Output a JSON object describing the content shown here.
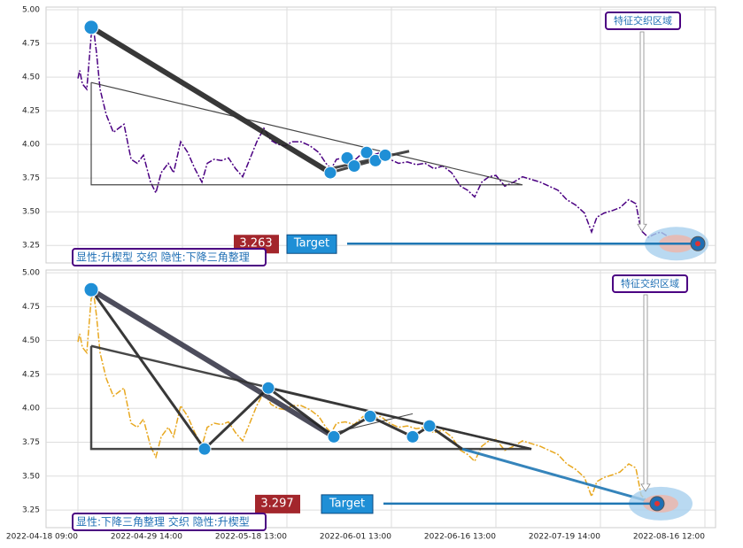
{
  "chart_data": [
    {
      "type": "line",
      "grid": true,
      "xlim": [
        -36,
        720
      ],
      "ylim": [
        3.12,
        5.02
      ],
      "yticks": [
        3.25,
        {
          "value": 3.5,
          "label": "3.50"
        },
        3.75,
        {
          "value": 4,
          "label": "4.00"
        },
        4.25,
        {
          "value": 4.5,
          "label": "4.50"
        },
        4.75,
        {
          "value": 5,
          "label": "5.00"
        }
      ],
      "x": [
        0,
        2,
        5,
        10,
        15,
        18,
        21,
        25,
        32,
        40,
        46,
        52,
        60,
        67,
        74,
        82,
        88,
        94,
        102,
        108,
        116,
        124,
        132,
        140,
        146,
        154,
        162,
        170,
        178,
        186,
        194,
        202,
        210,
        218,
        226,
        234,
        242,
        252,
        262,
        272,
        280,
        286,
        292,
        302,
        312,
        322,
        332,
        342,
        352,
        362,
        372,
        382,
        392,
        402,
        412,
        422,
        432,
        440,
        448,
        456,
        464,
        472,
        482,
        492,
        502,
        512,
        522,
        532,
        542,
        552,
        562,
        572,
        580,
        586,
        594,
        604,
        612,
        622,
        630,
        636,
        644,
        650,
        658,
        668
      ],
      "series": [
        {
          "color": "#4b0082",
          "values": [
            4.49,
            4.55,
            4.45,
            4.41,
            4.81,
            4.84,
            4.68,
            4.41,
            4.22,
            4.09,
            4.12,
            4.15,
            3.89,
            3.86,
            3.92,
            3.72,
            3.64,
            3.79,
            3.86,
            3.79,
            4.02,
            3.94,
            3.82,
            3.72,
            3.86,
            3.89,
            3.88,
            3.9,
            3.82,
            3.76,
            3.89,
            4.02,
            4.12,
            4.03,
            4.0,
            3.99,
            4.02,
            4.02,
            3.99,
            3.94,
            3.86,
            3.82,
            3.89,
            3.9,
            3.88,
            3.94,
            3.92,
            3.94,
            3.89,
            3.86,
            3.87,
            3.85,
            3.86,
            3.82,
            3.84,
            3.79,
            3.69,
            3.66,
            3.61,
            3.72,
            3.76,
            3.77,
            3.69,
            3.72,
            3.76,
            3.74,
            3.72,
            3.69,
            3.66,
            3.59,
            3.55,
            3.49,
            3.35,
            3.46,
            3.49,
            3.51,
            3.53,
            3.59,
            3.56,
            3.36,
            3.31,
            3.33,
            3.35,
            3.31
          ]
        }
      ],
      "patterns": [
        {
          "color": "#222222",
          "width": 6,
          "points": [
            [
              15,
              4.87
            ],
            [
              285,
              3.79
            ]
          ]
        },
        {
          "color": "#333333",
          "width": 1.2,
          "points": [
            [
              15,
              4.46
            ],
            [
              502,
              3.7
            ],
            [
              15,
              3.7
            ],
            [
              15,
              4.46
            ]
          ]
        },
        {
          "color": "#333333",
          "width": 3,
          "points": [
            [
              285,
              3.82
            ],
            [
              374,
              3.95
            ]
          ]
        },
        {
          "color": "#333333",
          "width": 3,
          "points": [
            [
              285,
              3.79
            ],
            [
              345,
              3.9
            ]
          ]
        }
      ],
      "markers": [
        [
          15,
          4.87
        ],
        [
          285,
          3.79
        ],
        [
          304,
          3.9
        ],
        [
          312,
          3.84
        ],
        [
          326,
          3.94
        ],
        [
          336,
          3.88
        ],
        [
          347,
          3.92
        ]
      ],
      "target": {
        "x": 700,
        "value": 3.263,
        "label": "Target"
      },
      "zone_label": "特征交织区域",
      "pattern_label": "显性:升楔型 交织 隐性:下降三角整理"
    },
    {
      "type": "line",
      "grid": true,
      "xlim": [
        -36,
        720
      ],
      "ylim": [
        3.12,
        5.02
      ],
      "yticks": [
        3.25,
        {
          "value": 3.5,
          "label": "3.50"
        },
        3.75,
        {
          "value": 4,
          "label": "4.00"
        },
        4.25,
        {
          "value": 4.5,
          "label": "4.50"
        },
        4.75,
        {
          "value": 5,
          "label": "5.00"
        }
      ],
      "xticks": [
        {
          "value": 0,
          "label": "2022-04-18 09:00"
        },
        {
          "value": 118,
          "label": "2022-04-29 14:00"
        },
        {
          "value": 236,
          "label": "2022-05-18 13:00"
        },
        {
          "value": 354,
          "label": "2022-06-01 13:00"
        },
        {
          "value": 472,
          "label": "2022-06-16 13:00"
        },
        {
          "value": 590,
          "label": "2022-07-19 14:00"
        },
        {
          "value": 708,
          "label": "2022-08-16 12:00"
        }
      ],
      "x": [
        0,
        2,
        5,
        10,
        15,
        18,
        21,
        25,
        32,
        40,
        46,
        52,
        60,
        67,
        74,
        82,
        88,
        94,
        102,
        108,
        116,
        124,
        132,
        140,
        146,
        154,
        162,
        170,
        178,
        186,
        194,
        202,
        210,
        218,
        226,
        234,
        242,
        252,
        262,
        272,
        280,
        286,
        292,
        302,
        312,
        322,
        332,
        342,
        352,
        362,
        372,
        382,
        392,
        402,
        412,
        422,
        432,
        440,
        448,
        456,
        464,
        472,
        482,
        492,
        502,
        512,
        522,
        532,
        542,
        552,
        562,
        572,
        580,
        586,
        594,
        604,
        612,
        622,
        630,
        636,
        644,
        650,
        658,
        668
      ],
      "series": [
        {
          "color": "#e8a820",
          "values": [
            4.49,
            4.55,
            4.45,
            4.41,
            4.81,
            4.84,
            4.68,
            4.41,
            4.22,
            4.09,
            4.12,
            4.15,
            3.89,
            3.86,
            3.92,
            3.72,
            3.64,
            3.79,
            3.86,
            3.79,
            4.02,
            3.94,
            3.82,
            3.72,
            3.86,
            3.89,
            3.88,
            3.9,
            3.82,
            3.76,
            3.89,
            4.02,
            4.12,
            4.03,
            4.0,
            3.99,
            4.02,
            4.02,
            3.99,
            3.94,
            3.86,
            3.82,
            3.89,
            3.9,
            3.88,
            3.94,
            3.92,
            3.94,
            3.89,
            3.86,
            3.87,
            3.85,
            3.86,
            3.82,
            3.84,
            3.79,
            3.69,
            3.66,
            3.61,
            3.72,
            3.76,
            3.77,
            3.69,
            3.72,
            3.76,
            3.74,
            3.72,
            3.69,
            3.66,
            3.59,
            3.55,
            3.49,
            3.35,
            3.46,
            3.49,
            3.51,
            3.53,
            3.59,
            3.56,
            3.36,
            3.31,
            3.33,
            3.35,
            3.31
          ]
        }
      ],
      "patterns": [
        {
          "color": "#3a3a4a",
          "width": 6,
          "points": [
            [
              15,
              4.875
            ],
            [
              289,
              3.79
            ]
          ]
        },
        {
          "color": "#222222",
          "width": 3,
          "points": [
            [
              15,
              4.875
            ],
            [
              143,
              3.7
            ],
            [
              215,
              4.15
            ],
            [
              289,
              3.79
            ],
            [
              330,
              3.94
            ],
            [
              378,
              3.79
            ],
            [
              397,
              3.87
            ],
            [
              434,
              3.7
            ]
          ]
        },
        {
          "color": "#333333",
          "width": 2.5,
          "points": [
            [
              15,
              4.46
            ],
            [
              512,
              3.7
            ],
            [
              15,
              3.7
            ],
            [
              15,
              4.46
            ]
          ]
        },
        {
          "color": "#333333",
          "width": 2.5,
          "points": [
            [
              215,
              4.15
            ],
            [
              512,
              3.7
            ]
          ]
        },
        {
          "color": "#333333",
          "width": 1,
          "points": [
            [
              289,
              3.82
            ],
            [
              378,
              3.96
            ]
          ]
        },
        {
          "color": "#1f77b4",
          "width": 3,
          "points": [
            [
              434,
              3.7
            ],
            [
              654,
              3.297
            ]
          ]
        }
      ],
      "markers": [
        [
          15,
          4.875
        ],
        [
          143,
          3.7
        ],
        [
          215,
          4.15
        ],
        [
          289,
          3.79
        ],
        [
          330,
          3.94
        ],
        [
          378,
          3.79
        ],
        [
          397,
          3.87
        ]
      ],
      "target": {
        "x": 654,
        "value": 3.297,
        "label": "Target"
      },
      "zone_label": "特征交织区域",
      "pattern_label": "显性:下降三角整理 交织 隐性:升楔型"
    }
  ]
}
